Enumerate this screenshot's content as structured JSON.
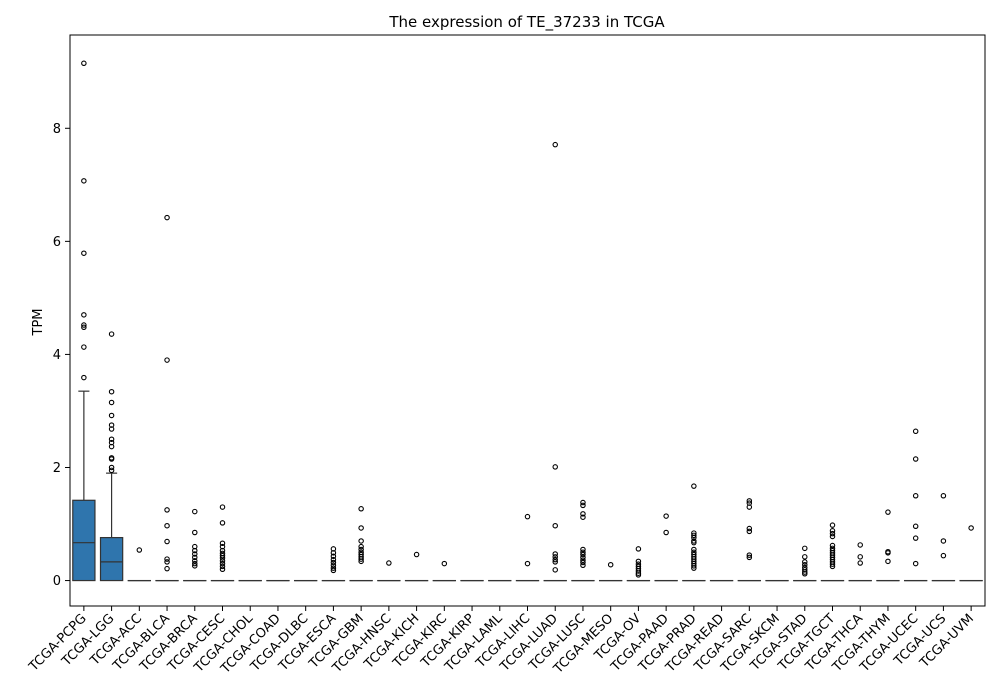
{
  "chart_data": {
    "type": "box",
    "title": "The expression of TE_37233 in TCGA",
    "xlabel": "",
    "ylabel": "TPM",
    "ylim": [
      -0.45,
      9.65
    ],
    "yticks": [
      0,
      2,
      4,
      6,
      8
    ],
    "grid": false,
    "legend": "none",
    "colors": {
      "box_fill": "#2f75ad",
      "box_edge": "#333333",
      "median": "#333333",
      "outlier_edge": "#000000",
      "axis": "#000000"
    },
    "categories": [
      "TCGA-PCPG",
      "TCGA-LGG",
      "TCGA-ACC",
      "TCGA-BLCA",
      "TCGA-BRCA",
      "TCGA-CESC",
      "TCGA-CHOL",
      "TCGA-COAD",
      "TCGA-DLBC",
      "TCGA-ESCA",
      "TCGA-GBM",
      "TCGA-HNSC",
      "TCGA-KICH",
      "TCGA-KIRC",
      "TCGA-KIRP",
      "TCGA-LAML",
      "TCGA-LIHC",
      "TCGA-LUAD",
      "TCGA-LUSC",
      "TCGA-MESO",
      "TCGA-OV",
      "TCGA-PAAD",
      "TCGA-PRAD",
      "TCGA-READ",
      "TCGA-SARC",
      "TCGA-SKCM",
      "TCGA-STAD",
      "TCGA-TGCT",
      "TCGA-THCA",
      "TCGA-THYM",
      "TCGA-UCEC",
      "TCGA-UCS",
      "TCGA-UVM"
    ],
    "boxes": [
      {
        "q1": 0,
        "median": 0.67,
        "q3": 1.42,
        "whisker_low": 0,
        "whisker_high": 3.35,
        "outliers": [
          9.15,
          7.07,
          5.79,
          4.7,
          4.52,
          4.48,
          4.13,
          3.59
        ]
      },
      {
        "q1": 0,
        "median": 0.33,
        "q3": 0.76,
        "whisker_low": 0,
        "whisker_high": 1.9,
        "outliers": [
          4.36,
          3.34,
          3.15,
          2.92,
          2.75,
          2.68,
          2.5,
          2.44,
          2.37,
          2.17,
          2.15,
          2.0,
          1.95
        ]
      },
      {
        "q1": 0,
        "median": 0,
        "q3": 0,
        "whisker_low": 0,
        "whisker_high": 0,
        "outliers": [
          0.54
        ]
      },
      {
        "q1": 0,
        "median": 0,
        "q3": 0,
        "whisker_low": 0,
        "whisker_high": 0,
        "outliers": [
          6.42,
          3.9,
          1.25,
          0.97,
          0.69,
          0.38,
          0.33,
          0.21
        ]
      },
      {
        "q1": 0,
        "median": 0,
        "q3": 0,
        "whisker_low": 0,
        "whisker_high": 0,
        "outliers": [
          1.22,
          0.85,
          0.6,
          0.53,
          0.47,
          0.41,
          0.35,
          0.3,
          0.26
        ]
      },
      {
        "q1": 0,
        "median": 0,
        "q3": 0,
        "whisker_low": 0,
        "whisker_high": 0,
        "outliers": [
          1.3,
          1.02,
          0.66,
          0.6,
          0.53,
          0.48,
          0.44,
          0.4,
          0.35,
          0.3,
          0.25,
          0.2
        ]
      },
      {
        "q1": 0,
        "median": 0,
        "q3": 0,
        "whisker_low": 0,
        "whisker_high": 0,
        "outliers": []
      },
      {
        "q1": 0,
        "median": 0,
        "q3": 0,
        "whisker_low": 0,
        "whisker_high": 0,
        "outliers": []
      },
      {
        "q1": 0,
        "median": 0,
        "q3": 0,
        "whisker_low": 0,
        "whisker_high": 0,
        "outliers": []
      },
      {
        "q1": 0,
        "median": 0,
        "q3": 0,
        "whisker_low": 0,
        "whisker_high": 0,
        "outliers": [
          0.56,
          0.49,
          0.43,
          0.37,
          0.32,
          0.27,
          0.22,
          0.18
        ]
      },
      {
        "q1": 0,
        "median": 0,
        "q3": 0,
        "whisker_low": 0,
        "whisker_high": 0,
        "outliers": [
          1.27,
          0.93,
          0.7,
          0.6,
          0.55,
          0.5,
          0.46,
          0.42,
          0.38,
          0.34
        ]
      },
      {
        "q1": 0,
        "median": 0,
        "q3": 0,
        "whisker_low": 0,
        "whisker_high": 0,
        "outliers": [
          0.31
        ]
      },
      {
        "q1": 0,
        "median": 0,
        "q3": 0,
        "whisker_low": 0,
        "whisker_high": 0,
        "outliers": [
          0.46
        ]
      },
      {
        "q1": 0,
        "median": 0,
        "q3": 0,
        "whisker_low": 0,
        "whisker_high": 0,
        "outliers": [
          0.3
        ]
      },
      {
        "q1": 0,
        "median": 0,
        "q3": 0,
        "whisker_low": 0,
        "whisker_high": 0,
        "outliers": []
      },
      {
        "q1": 0,
        "median": 0,
        "q3": 0,
        "whisker_low": 0,
        "whisker_high": 0,
        "outliers": []
      },
      {
        "q1": 0,
        "median": 0,
        "q3": 0,
        "whisker_low": 0,
        "whisker_high": 0,
        "outliers": [
          1.13,
          0.3
        ]
      },
      {
        "q1": 0,
        "median": 0,
        "q3": 0,
        "whisker_low": 0,
        "whisker_high": 0,
        "outliers": [
          7.71,
          2.01,
          0.97,
          0.47,
          0.42,
          0.37,
          0.33,
          0.19
        ]
      },
      {
        "q1": 0,
        "median": 0,
        "q3": 0,
        "whisker_low": 0,
        "whisker_high": 0,
        "outliers": [
          1.38,
          1.33,
          1.18,
          1.12,
          0.55,
          0.5,
          0.46,
          0.41,
          0.36,
          0.32,
          0.27
        ]
      },
      {
        "q1": 0,
        "median": 0,
        "q3": 0,
        "whisker_low": 0,
        "whisker_high": 0,
        "outliers": [
          0.28
        ]
      },
      {
        "q1": 0,
        "median": 0,
        "q3": 0,
        "whisker_low": 0,
        "whisker_high": 0,
        "outliers": [
          0.56,
          0.34,
          0.29,
          0.25,
          0.21,
          0.17,
          0.13,
          0.1
        ]
      },
      {
        "q1": 0,
        "median": 0,
        "q3": 0,
        "whisker_low": 0,
        "whisker_high": 0,
        "outliers": [
          1.14,
          0.85
        ]
      },
      {
        "q1": 0,
        "median": 0,
        "q3": 0,
        "whisker_low": 0,
        "whisker_high": 0,
        "outliers": [
          1.67,
          0.84,
          0.8,
          0.76,
          0.7,
          0.67,
          0.55,
          0.5,
          0.46,
          0.42,
          0.38,
          0.34,
          0.3,
          0.26,
          0.22
        ]
      },
      {
        "q1": 0,
        "median": 0,
        "q3": 0,
        "whisker_low": 0,
        "whisker_high": 0,
        "outliers": []
      },
      {
        "q1": 0,
        "median": 0,
        "q3": 0,
        "whisker_low": 0,
        "whisker_high": 0,
        "outliers": [
          1.41,
          1.37,
          1.3,
          0.92,
          0.87,
          0.45,
          0.41
        ]
      },
      {
        "q1": 0,
        "median": 0,
        "q3": 0,
        "whisker_low": 0,
        "whisker_high": 0,
        "outliers": []
      },
      {
        "q1": 0,
        "median": 0,
        "q3": 0,
        "whisker_low": 0,
        "whisker_high": 0,
        "outliers": [
          0.57,
          0.42,
          0.33,
          0.28,
          0.23,
          0.19,
          0.15,
          0.12
        ]
      },
      {
        "q1": 0,
        "median": 0,
        "q3": 0,
        "whisker_low": 0,
        "whisker_high": 0,
        "outliers": [
          0.98,
          0.88,
          0.83,
          0.78,
          0.62,
          0.57,
          0.53,
          0.49,
          0.45,
          0.41,
          0.37,
          0.33,
          0.29,
          0.25
        ]
      },
      {
        "q1": 0,
        "median": 0,
        "q3": 0,
        "whisker_low": 0,
        "whisker_high": 0,
        "outliers": [
          0.63,
          0.42,
          0.31
        ]
      },
      {
        "q1": 0,
        "median": 0,
        "q3": 0,
        "whisker_low": 0,
        "whisker_high": 0,
        "outliers": [
          1.21,
          0.51,
          0.49,
          0.34
        ]
      },
      {
        "q1": 0,
        "median": 0,
        "q3": 0,
        "whisker_low": 0,
        "whisker_high": 0,
        "outliers": [
          2.64,
          2.15,
          1.5,
          0.96,
          0.75,
          0.3
        ]
      },
      {
        "q1": 0,
        "median": 0,
        "q3": 0,
        "whisker_low": 0,
        "whisker_high": 0,
        "outliers": [
          1.5,
          0.7,
          0.44
        ]
      },
      {
        "q1": 0,
        "median": 0,
        "q3": 0,
        "whisker_low": 0,
        "whisker_high": 0,
        "outliers": [
          0.93
        ]
      }
    ]
  }
}
